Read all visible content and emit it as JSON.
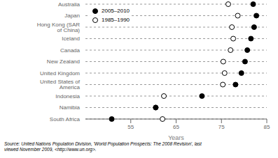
{
  "chart_data": {
    "type": "dot",
    "categories": [
      "Australia",
      "Japan",
      "Hong Kong (SAR of China)",
      "Iceland",
      "Canada",
      "New Zealand",
      "United Kingdom",
      "United States of America",
      "Indonesia",
      "Namibia",
      "South Africa"
    ],
    "series": [
      {
        "name": "2005–2010",
        "color": "#000000",
        "marker": "filled_circle",
        "values": [
          82.0,
          82.7,
          82.2,
          81.5,
          80.7,
          80.2,
          79.4,
          78.1,
          70.7,
          60.5,
          50.8
        ]
      },
      {
        "name": "1985–1990",
        "color": "#000000",
        "marker": "open_circle",
        "values": [
          76.5,
          78.6,
          77.3,
          77.6,
          77.0,
          75.4,
          75.7,
          75.3,
          62.3,
          60.5,
          62.0
        ]
      }
    ],
    "xlabel": "Years",
    "xlim": [
      45,
      85
    ],
    "xticks": [
      55,
      65,
      75,
      85
    ],
    "grid": true,
    "legend": "upper left",
    "annotations": [
      "Source: United Nations Population Division, 'World Population Prospects: The 2008 Revision', last\nviewed November 2009, <http://www.un.org>."
    ]
  }
}
